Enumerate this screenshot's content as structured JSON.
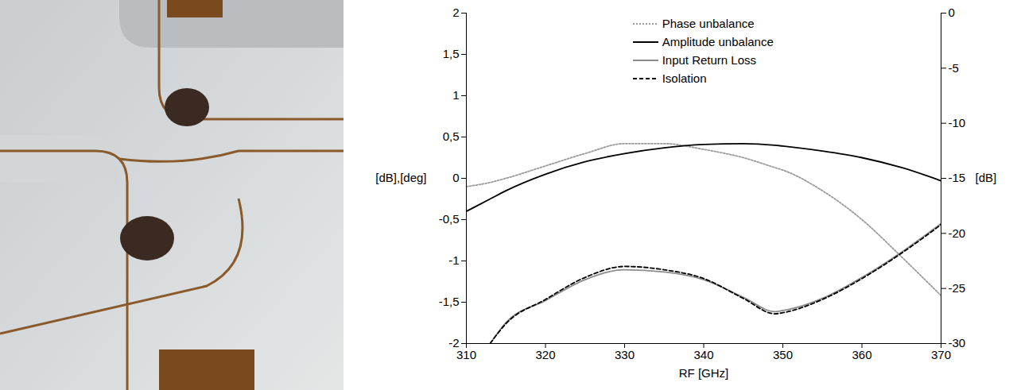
{
  "chart_data": {
    "type": "line",
    "x_label": "RF [GHz]",
    "y_label": "[dB],[deg]",
    "y2_label": "[dB]",
    "x": [
      310,
      313,
      315,
      320,
      325,
      330,
      335,
      340,
      345,
      349,
      350,
      355,
      360,
      365,
      370
    ],
    "series": [
      {
        "name": "Phase unbalance",
        "color": "#9a9a9a",
        "line_style": "dotted",
        "values": [
          -0.1,
          -0.05,
          0.0,
          0.15,
          0.3,
          0.42,
          0.42,
          0.35,
          0.25,
          0.13,
          0.1,
          -0.15,
          -0.5,
          -0.95,
          -1.42
        ]
      },
      {
        "name": "Amplitude unbalance",
        "color": "#000000",
        "line_style": "solid",
        "values": [
          -0.4,
          -0.25,
          -0.15,
          0.05,
          0.2,
          0.3,
          0.37,
          0.41,
          0.42,
          0.4,
          0.39,
          0.33,
          0.25,
          0.13,
          -0.03
        ]
      },
      {
        "name": "Input Return Loss",
        "color": "#8c8c8c",
        "line_style": "solid",
        "axis": "y2",
        "values": [
          null,
          -30,
          -28.1,
          -26.1,
          -24.2,
          -23.3,
          -23.5,
          -24.2,
          -25.8,
          -27.1,
          -27.0,
          -25.9,
          -24.0,
          -21.7,
          -19.1
        ]
      },
      {
        "name": "Isolation",
        "color": "#000000",
        "line_style": "dashed",
        "axis": "y2",
        "values": [
          null,
          -30,
          -28.2,
          -26.0,
          -24.0,
          -23.0,
          -23.3,
          -24.1,
          -25.9,
          -27.3,
          -27.2,
          -26.0,
          -24.1,
          -21.8,
          -19.2
        ]
      }
    ],
    "xlim": [
      310,
      370
    ],
    "xticks": [
      310,
      320,
      330,
      340,
      350,
      360,
      370
    ],
    "ylim": [
      -2,
      2
    ],
    "yticks": [
      -2,
      {
        "value": -1.5,
        "label": "-1,5"
      },
      -1,
      {
        "value": -0.5,
        "label": "-0,5"
      },
      0,
      {
        "value": 0.5,
        "label": "0,5"
      },
      1,
      {
        "value": 1.5,
        "label": "1,5"
      },
      2
    ],
    "y2lim": [
      -30,
      0
    ],
    "y2ticks": [
      -30,
      -25,
      -20,
      -15,
      -10,
      -5,
      0
    ],
    "grid": false,
    "legend": "top"
  }
}
